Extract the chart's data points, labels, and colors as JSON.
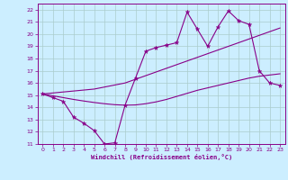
{
  "xlabel": "Windchill (Refroidissement éolien,°C)",
  "bg_color": "#cceeff",
  "line_color": "#880088",
  "grid_color": "#aacccc",
  "xlim": [
    -0.5,
    23.5
  ],
  "ylim": [
    11,
    22.5
  ],
  "xticks": [
    0,
    1,
    2,
    3,
    4,
    5,
    6,
    7,
    8,
    9,
    10,
    11,
    12,
    13,
    14,
    15,
    16,
    17,
    18,
    19,
    20,
    21,
    22,
    23
  ],
  "yticks": [
    11,
    12,
    13,
    14,
    15,
    16,
    17,
    18,
    19,
    20,
    21,
    22
  ],
  "main_x": [
    0,
    1,
    2,
    3,
    4,
    5,
    6,
    7,
    8,
    9,
    10,
    11,
    12,
    13,
    14,
    15,
    16,
    17,
    18,
    19,
    20,
    21,
    22,
    23
  ],
  "main_y": [
    15.1,
    14.8,
    14.5,
    13.2,
    12.7,
    12.1,
    11.0,
    11.1,
    14.2,
    16.4,
    18.6,
    18.9,
    19.1,
    19.3,
    21.8,
    20.4,
    19.0,
    20.6,
    21.9,
    21.1,
    20.8,
    17.0,
    16.0,
    15.8
  ],
  "upper_x": [
    0,
    5,
    8,
    9,
    10,
    11,
    12,
    13,
    14,
    15,
    16,
    17,
    18,
    19,
    20,
    21,
    22,
    23
  ],
  "upper_y": [
    15.1,
    15.5,
    16.0,
    16.3,
    16.6,
    16.9,
    17.2,
    17.5,
    17.8,
    18.1,
    18.4,
    18.7,
    19.0,
    19.3,
    19.6,
    19.9,
    20.2,
    20.5
  ],
  "lower_x": [
    0,
    1,
    2,
    3,
    4,
    5,
    6,
    7,
    8,
    9,
    10,
    11,
    12,
    13,
    14,
    15,
    16,
    17,
    18,
    19,
    20,
    21,
    22,
    23
  ],
  "lower_y": [
    15.1,
    14.95,
    14.8,
    14.65,
    14.52,
    14.4,
    14.3,
    14.22,
    14.18,
    14.2,
    14.3,
    14.45,
    14.65,
    14.9,
    15.15,
    15.4,
    15.6,
    15.8,
    16.0,
    16.2,
    16.4,
    16.55,
    16.65,
    16.75
  ]
}
